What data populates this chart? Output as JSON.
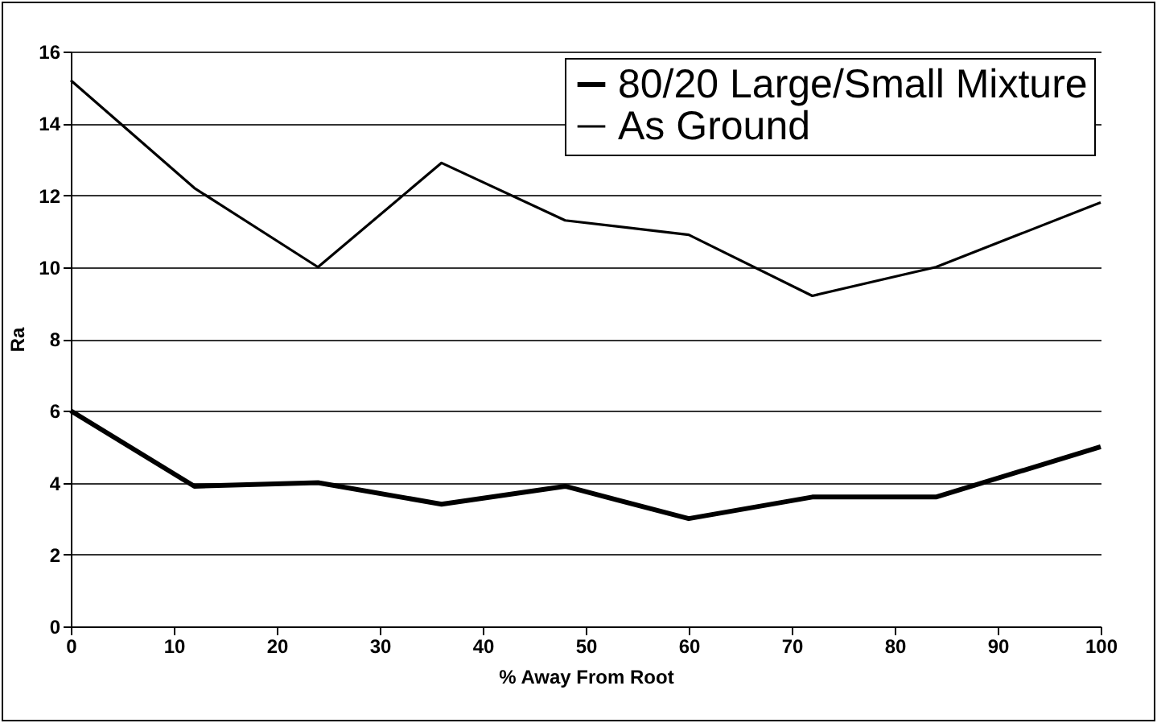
{
  "chart_data": {
    "type": "line",
    "xlabel": "% Away From Root",
    "ylabel": "Ra",
    "x": [
      0,
      12,
      24,
      36,
      48,
      60,
      72,
      84,
      100
    ],
    "series": [
      {
        "name": "80/20 Large/Small Mixture",
        "color": "#000000",
        "values": [
          6.0,
          3.9,
          4.0,
          3.4,
          3.9,
          3.0,
          3.6,
          3.6,
          5.0
        ]
      },
      {
        "name": "As Ground",
        "color": "#000000",
        "values": [
          15.2,
          12.2,
          10.0,
          12.9,
          11.3,
          10.9,
          9.2,
          10.0,
          11.8
        ]
      }
    ],
    "xlim": [
      0,
      100
    ],
    "xticks": [
      0,
      10,
      20,
      30,
      40,
      50,
      60,
      70,
      80,
      90,
      100
    ],
    "ylim": [
      0,
      16
    ],
    "yticks": [
      0,
      2,
      4,
      6,
      8,
      10,
      12,
      14,
      16
    ],
    "grid": "y",
    "legend": "top right",
    "marker": "none",
    "line_style": "solid"
  }
}
